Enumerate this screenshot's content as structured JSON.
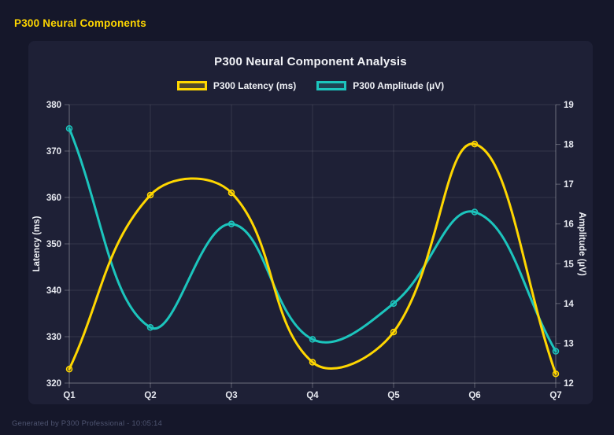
{
  "header": {
    "title": "P300 Neural Components"
  },
  "footer": {
    "text": "Generated by P300 Professional - 10:05:14"
  },
  "colors": {
    "page_background": "#15172a",
    "card_background": "#1e2036",
    "latency_line": "#ffd700",
    "latency_fill": "rgba(255,215,0,0.22)",
    "amplitude_line": "#1cc5bd",
    "amplitude_fill": "rgba(28,197,189,0.22)",
    "grid": "rgba(255,255,255,0.10)",
    "axis_border": "rgba(255,255,255,0.28)",
    "tick_text": "#e7e9f0"
  },
  "chart_data": {
    "type": "line",
    "title": "P300 Neural Component Analysis",
    "categories": [
      "Q1",
      "Q2",
      "Q3",
      "Q4",
      "Q5",
      "Q6",
      "Q7"
    ],
    "series": [
      {
        "name": "P300 Latency (ms)",
        "axis": "left",
        "color": "#ffd700",
        "fill": "rgba(255,215,0,0.22)",
        "values": [
          323,
          360.5,
          361,
          324.5,
          331,
          371.5,
          322
        ]
      },
      {
        "name": "P300 Amplitude (µV)",
        "axis": "right",
        "color": "#1cc5bd",
        "fill": "rgba(28,197,189,0.22)",
        "values": [
          18.4,
          13.4,
          16.0,
          13.1,
          14.0,
          16.3,
          12.8
        ]
      }
    ],
    "axes": {
      "left": {
        "label": "Latency (ms)",
        "min": 320,
        "max": 380,
        "ticks": [
          320,
          330,
          340,
          350,
          360,
          370,
          380
        ]
      },
      "right": {
        "label": "Amplitude (µV)",
        "min": 12,
        "max": 19,
        "ticks": [
          12,
          13,
          14,
          15,
          16,
          17,
          18,
          19
        ]
      }
    },
    "grid": true,
    "legend_position": "top",
    "line_tension": 0.4
  }
}
